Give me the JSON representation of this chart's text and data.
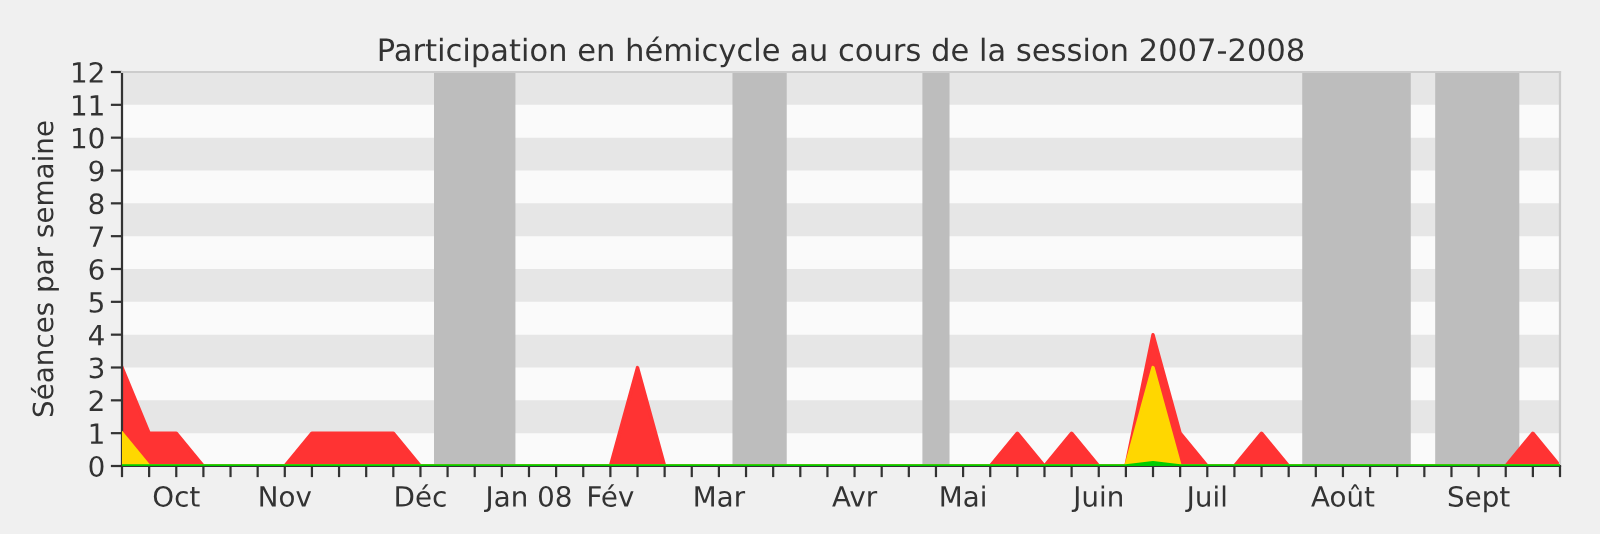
{
  "chart_data": {
    "type": "area",
    "title": "Participation en hémicycle au cours de la session 2007-2008",
    "ylabel": "Séances par semaine",
    "categories": [
      null,
      null,
      "Oct",
      null,
      null,
      null,
      "Nov",
      null,
      null,
      null,
      null,
      "Déc",
      null,
      null,
      null,
      "Jan 08",
      null,
      null,
      "Fév",
      null,
      null,
      null,
      "Mar",
      null,
      null,
      null,
      null,
      "Avr",
      null,
      null,
      null,
      "Mai",
      null,
      null,
      null,
      null,
      "Juin",
      null,
      null,
      null,
      "Juil",
      null,
      null,
      null,
      null,
      "Août",
      null,
      null,
      null,
      null,
      "Sept",
      null,
      null,
      null
    ],
    "series": [
      {
        "color": "#ff3333",
        "values": [
          3,
          1,
          1,
          0,
          0,
          0,
          0,
          1,
          1,
          1,
          1,
          0,
          0,
          0,
          0,
          0,
          0,
          0,
          0,
          3,
          0,
          0,
          0,
          0,
          0,
          0,
          0,
          0,
          0,
          0,
          0,
          0,
          0,
          1,
          0,
          1,
          0,
          0,
          4,
          1,
          0,
          0,
          1,
          0,
          0,
          0,
          0,
          0,
          0,
          0,
          0,
          0,
          1,
          0
        ]
      },
      {
        "color": "#ffd700",
        "values": [
          1,
          0,
          0,
          0,
          0,
          0,
          0,
          0,
          0,
          0,
          0,
          0,
          0,
          0,
          0,
          0,
          0,
          0,
          0,
          0,
          0,
          0,
          0,
          0,
          0,
          0,
          0,
          0,
          0,
          0,
          0,
          0,
          0,
          0,
          0,
          0,
          0,
          0,
          3,
          0,
          0,
          0,
          0,
          0,
          0,
          0,
          0,
          0,
          0,
          0,
          0,
          0,
          0,
          0
        ]
      },
      {
        "color": "#00cc00",
        "values": [
          0,
          0,
          0,
          0,
          0,
          0,
          0,
          0,
          0,
          0,
          0,
          0,
          0,
          0,
          0,
          0,
          0,
          0,
          0,
          0,
          0,
          0,
          0,
          0,
          0,
          0,
          0,
          0,
          0,
          0,
          0,
          0,
          0,
          0,
          0,
          0,
          0,
          0,
          0.1,
          0,
          0,
          0,
          0,
          0,
          0,
          0,
          0,
          0,
          0,
          0,
          0,
          0,
          0,
          0
        ]
      }
    ],
    "ylim": [
      0,
      12
    ],
    "yticks": [
      0,
      1,
      2,
      3,
      4,
      5,
      6,
      7,
      8,
      9,
      10,
      11,
      12
    ],
    "legend": false
  }
}
